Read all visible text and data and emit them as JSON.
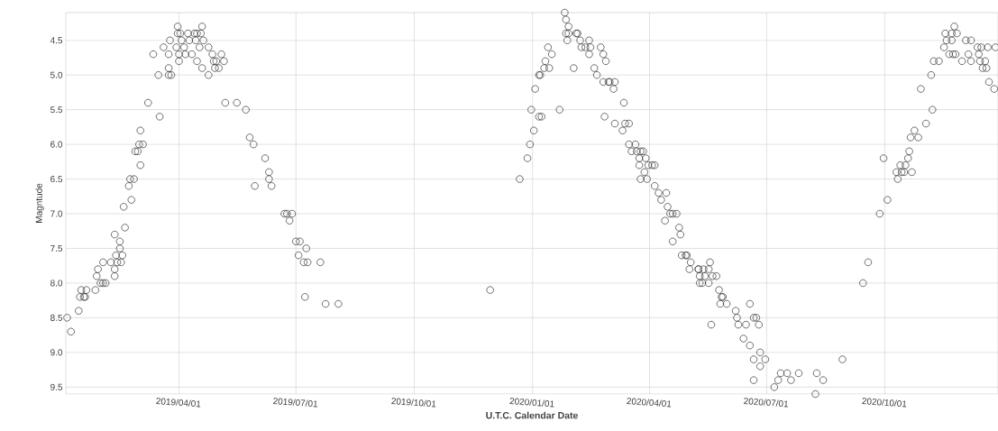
{
  "chart_data": {
    "type": "scatter",
    "xlabel": "U.T.C. Calendar Date",
    "ylabel": "Magntude",
    "color": "#333333",
    "marker": "circle",
    "grid": true,
    "xlim": [
      "2019-01-03",
      "2020-12-28"
    ],
    "xticks": [
      {
        "value": "2019-04-01",
        "label": "2019/04/01"
      },
      {
        "value": "2019-07-01",
        "label": "2019/07/01"
      },
      {
        "value": "2019-10-01",
        "label": "2019/10/01"
      },
      {
        "value": "2020-01-01",
        "label": "2020/01/01"
      },
      {
        "value": "2020-04-01",
        "label": "2020/04/01"
      },
      {
        "value": "2020-07-01",
        "label": "2020/07/01"
      },
      {
        "value": "2020-10-01",
        "label": "2020/10/01"
      }
    ],
    "ylim": [
      9.6,
      4.1
    ],
    "yticks": [
      4.5,
      {
        "value": 5,
        "label": "5.0"
      },
      5.5,
      {
        "value": 6,
        "label": "6.0"
      },
      6.5,
      {
        "value": 7,
        "label": "7.0"
      },
      7.5,
      {
        "value": 8,
        "label": "8.0"
      },
      8.5,
      {
        "value": 9,
        "label": "9.0"
      },
      9.5
    ],
    "x": [
      "2019-01-04",
      "2019-01-07",
      "2019-01-13",
      "2019-01-15",
      "2019-01-14",
      "2019-01-17",
      "2019-01-19",
      "2019-01-18",
      "2019-01-26",
      "2019-01-27",
      "2019-01-28",
      "2019-01-30",
      "2019-02-01",
      "2019-02-01",
      "2019-02-03",
      "2019-02-07",
      "2019-02-10",
      "2019-02-10",
      "2019-02-10",
      "2019-02-11",
      "2019-02-12",
      "2019-02-14",
      "2019-02-14",
      "2019-02-16",
      "2019-02-15",
      "2019-02-18",
      "2019-02-17",
      "2019-02-21",
      "2019-02-23",
      "2019-02-22",
      "2019-02-25",
      "2019-02-26",
      "2019-02-28",
      "2019-03-01",
      "2019-03-02",
      "2019-03-02",
      "2019-03-04",
      "2019-03-08",
      "2019-03-12",
      "2019-03-16",
      "2019-03-17",
      "2019-03-20",
      "2019-03-24",
      "2019-03-24",
      "2019-03-25",
      "2019-03-26",
      "2019-03-24",
      "2019-03-31",
      "2019-03-30",
      "2019-03-31",
      "2019-04-02",
      "2019-04-01",
      "2019-04-01",
      "2019-04-03",
      "2019-04-05",
      "2019-04-06",
      "2019-04-08",
      "2019-04-09",
      "2019-04-11",
      "2019-04-13",
      "2019-04-14",
      "2019-04-15",
      "2019-04-15",
      "2019-04-17",
      "2019-04-18",
      "2019-04-19",
      "2019-04-19",
      "2019-04-20",
      "2019-04-24",
      "2019-04-24",
      "2019-04-27",
      "2019-04-28",
      "2019-04-29",
      "2019-04-30",
      "2019-05-02",
      "2019-05-04",
      "2019-05-06",
      "2019-05-07",
      "2019-05-16",
      "2019-05-23",
      "2019-05-26",
      "2019-05-29",
      "2019-05-30",
      "2019-06-07",
      "2019-06-10",
      "2019-06-10",
      "2019-06-12",
      "2019-06-22",
      "2019-06-24",
      "2019-06-26",
      "2019-06-28",
      "2019-07-01",
      "2019-07-04",
      "2019-07-03",
      "2019-07-07",
      "2019-07-09",
      "2019-07-10",
      "2019-07-08",
      "2019-07-20",
      "2019-07-24",
      "2019-08-03",
      "2019-11-29",
      "2019-12-22",
      "2019-12-28",
      "2019-12-30",
      "2019-12-31",
      "2020-01-02",
      "2020-01-03",
      "2020-01-06",
      "2020-01-08",
      "2020-01-06",
      "2020-01-07",
      "2020-01-10",
      "2020-01-11",
      "2020-01-13",
      "2020-01-14",
      "2020-01-16",
      "2020-01-22",
      "2020-01-26",
      "2020-01-27",
      "2020-01-29",
      "2020-01-27",
      "2020-01-28",
      "2020-01-29",
      "2020-02-02",
      "2020-02-04",
      "2020-02-05",
      "2020-02-07",
      "2020-02-08",
      "2020-02-11",
      "2020-02-14",
      "2020-02-14",
      "2020-02-15",
      "2020-02-18",
      "2020-02-20",
      "2020-02-23",
      "2020-02-25",
      "2020-02-26",
      "2020-02-25",
      "2020-02-27",
      "2020-02-29",
      "2020-03-01",
      "2020-03-04",
      "2020-03-05",
      "2020-03-05",
      "2020-03-11",
      "2020-03-12",
      "2020-03-13",
      "2020-03-16",
      "2020-03-16",
      "2020-03-18",
      "2020-03-21",
      "2020-03-22",
      "2020-03-24",
      "2020-03-25",
      "2020-03-24",
      "2020-03-27",
      "2020-03-28",
      "2020-03-29",
      "2020-03-25",
      "2020-03-30",
      "2020-03-31",
      "2020-04-03",
      "2020-04-05",
      "2020-04-05",
      "2020-04-08",
      "2020-04-10",
      "2020-04-14",
      "2020-04-13",
      "2020-04-15",
      "2020-04-17",
      "2020-04-19",
      "2020-04-22",
      "2020-04-19",
      "2020-04-24",
      "2020-04-25",
      "2020-04-26",
      "2020-04-29",
      "2020-05-03",
      "2020-05-02",
      "2020-05-09",
      "2020-05-10",
      "2020-04-30",
      "2020-05-09",
      "2020-05-10",
      "2020-05-12",
      "2020-05-13",
      "2020-05-14",
      "2020-05-17",
      "2020-05-18",
      "2020-05-17",
      "2020-05-19",
      "2020-05-20",
      "2020-05-23",
      "2020-05-25",
      "2020-05-27",
      "2020-05-26",
      "2020-05-31",
      "2020-05-28",
      "2020-06-07",
      "2020-06-08",
      "2020-06-09",
      "2020-06-13",
      "2020-06-15",
      "2020-06-18",
      "2020-06-18",
      "2020-06-21",
      "2020-06-21",
      "2020-06-21",
      "2020-06-23",
      "2020-06-25",
      "2020-06-26",
      "2020-06-26",
      "2020-06-30",
      "2020-07-07",
      "2020-07-10",
      "2020-07-12",
      "2020-07-17",
      "2020-07-20",
      "2020-07-26",
      "2020-08-08",
      "2020-08-09",
      "2020-08-14",
      "2020-08-29",
      "2020-09-14",
      "2020-09-18",
      "2020-09-27",
      "2020-09-30",
      "2020-10-03",
      "2020-10-10",
      "2020-10-11",
      "2020-10-13",
      "2020-10-14",
      "2020-10-16",
      "2020-10-17",
      "2020-10-19",
      "2020-10-20",
      "2020-10-22",
      "2020-10-21",
      "2020-10-24",
      "2020-10-27",
      "2020-11-02",
      "2020-11-07",
      "2020-10-29",
      "2020-11-06",
      "2020-11-08",
      "2020-11-12",
      "2020-11-16",
      "2020-11-17",
      "2020-11-18",
      "2020-11-20",
      "2020-11-22",
      "2020-11-22",
      "2020-11-24",
      "2020-11-23",
      "2020-11-25",
      "2020-11-26",
      "2020-11-30",
      "2020-12-03",
      "2020-12-05",
      "2020-12-07",
      "2020-12-07",
      "2020-12-12",
      "2020-12-13",
      "2020-12-14",
      "2020-12-15",
      "2020-12-16",
      "2020-12-18",
      "2020-12-20",
      "2020-12-19",
      "2020-12-21",
      "2020-12-25",
      "2020-12-26"
    ],
    "values": [
      8.5,
      8.7,
      8.4,
      8.1,
      8.2,
      8.2,
      8.1,
      8.2,
      8.1,
      7.9,
      7.8,
      8.0,
      7.7,
      8.0,
      8.0,
      7.7,
      7.3,
      7.8,
      7.9,
      7.6,
      7.7,
      7.4,
      7.5,
      7.6,
      7.7,
      7.2,
      6.9,
      6.6,
      6.8,
      6.5,
      6.5,
      6.1,
      6.1,
      6.0,
      5.8,
      6.3,
      6.0,
      5.4,
      4.7,
      5.0,
      5.6,
      4.6,
      4.7,
      5.0,
      4.5,
      5.0,
      4.9,
      4.3,
      4.6,
      4.4,
      4.4,
      4.7,
      4.8,
      4.5,
      4.6,
      4.7,
      4.4,
      4.5,
      4.7,
      4.4,
      4.5,
      4.4,
      4.8,
      4.6,
      4.4,
      4.3,
      4.9,
      4.5,
      4.6,
      5.0,
      4.7,
      4.8,
      4.9,
      4.8,
      4.9,
      4.7,
      4.8,
      5.4,
      5.4,
      5.5,
      5.9,
      6.0,
      6.6,
      6.2,
      6.4,
      6.5,
      6.6,
      7.0,
      7.0,
      7.1,
      7.0,
      7.4,
      7.4,
      7.6,
      7.7,
      7.5,
      7.7,
      8.2,
      7.7,
      8.3,
      8.3,
      8.1,
      6.5,
      6.2,
      6.0,
      5.5,
      5.8,
      5.2,
      5.6,
      5.6,
      5.0,
      5.0,
      4.9,
      4.8,
      4.6,
      4.9,
      4.7,
      5.5,
      4.1,
      4.2,
      4.3,
      4.4,
      4.5,
      4.4,
      4.9,
      4.4,
      4.4,
      4.5,
      4.6,
      4.6,
      4.5,
      4.7,
      4.6,
      4.9,
      5.0,
      4.6,
      4.7,
      5.6,
      5.1,
      4.8,
      5.1,
      5.1,
      5.2,
      5.1,
      5.7,
      5.8,
      5.4,
      5.7,
      5.7,
      6.0,
      6.1,
      6.0,
      6.1,
      6.2,
      6.1,
      6.3,
      6.1,
      6.4,
      6.2,
      6.5,
      6.5,
      6.3,
      6.3,
      6.3,
      6.6,
      6.7,
      6.8,
      6.7,
      7.1,
      6.9,
      7.0,
      7.0,
      7.0,
      7.4,
      7.2,
      7.3,
      7.6,
      7.6,
      7.7,
      7.8,
      7.8,
      8.0,
      7.6,
      7.8,
      7.9,
      8.0,
      7.8,
      7.9,
      7.8,
      7.7,
      8.0,
      8.6,
      7.9,
      7.9,
      8.1,
      8.2,
      8.3,
      8.3,
      8.2,
      8.4,
      8.5,
      8.6,
      8.8,
      8.6,
      8.3,
      8.9,
      8.5,
      9.1,
      9.4,
      8.5,
      8.6,
      9.0,
      9.2,
      9.1,
      9.5,
      9.4,
      9.3,
      9.3,
      9.4,
      9.3,
      9.6,
      9.3,
      9.4,
      9.1,
      8.0,
      7.7,
      7.0,
      6.2,
      6.8,
      6.4,
      6.5,
      6.3,
      6.4,
      6.4,
      6.3,
      6.2,
      6.1,
      6.4,
      5.9,
      5.8,
      5.9,
      5.7,
      5.5,
      5.2,
      5.0,
      4.8,
      4.8,
      4.6,
      4.4,
      4.5,
      4.7,
      4.4,
      4.5,
      4.3,
      4.7,
      4.7,
      4.4,
      4.8,
      4.5,
      4.7,
      4.5,
      4.8,
      4.6,
      4.7,
      4.8,
      4.6,
      4.9,
      4.8,
      4.6,
      4.9,
      5.1,
      5.2,
      4.6
    ]
  }
}
